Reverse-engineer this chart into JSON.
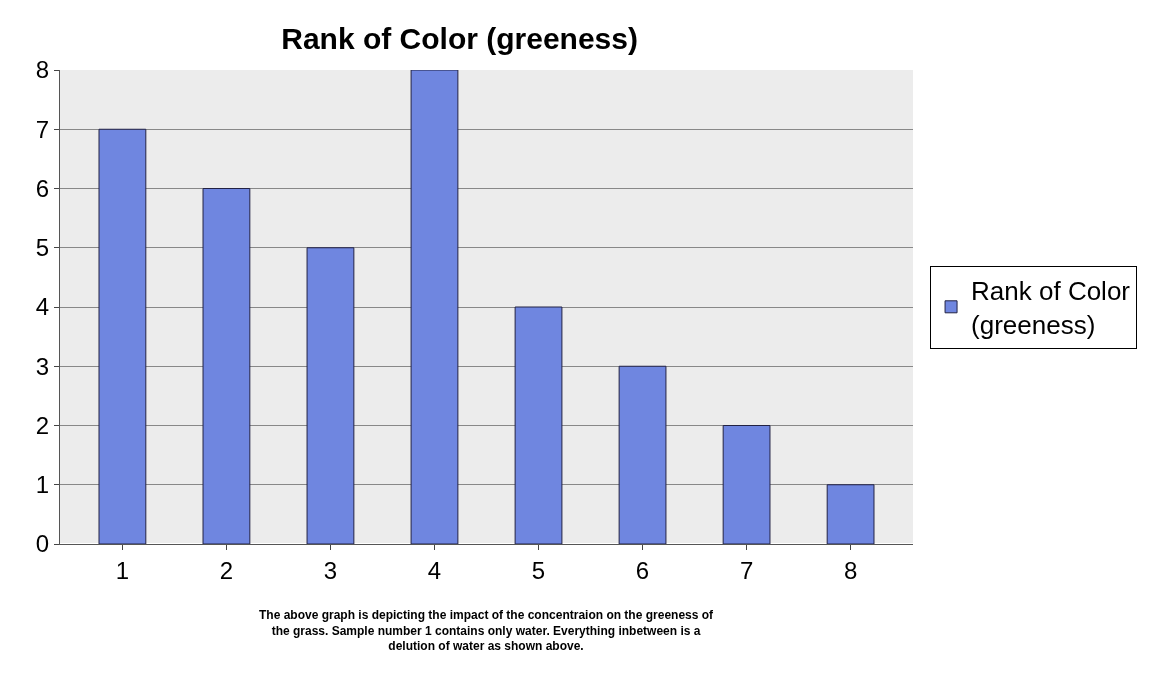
{
  "chart_data": {
    "type": "bar",
    "title": "Rank of Color (greeness)",
    "categories": [
      "1",
      "2",
      "3",
      "4",
      "5",
      "6",
      "7",
      "8"
    ],
    "series": [
      {
        "name": "Rank of Color (greeness)",
        "color": "#6f86e0",
        "values": [
          7,
          6,
          5,
          8,
          4,
          3,
          2,
          1
        ]
      }
    ],
    "ylim": [
      0,
      8
    ],
    "yticks": [
      0,
      1,
      2,
      3,
      4,
      5,
      6,
      7,
      8
    ],
    "grid": "y",
    "legend": "right",
    "annotations": [
      "The above graph is depicting the impact of the concentraion on the greeness of the grass. Sample number 1 contains only water. Everything inbetween is a delution of water as shown above."
    ]
  }
}
